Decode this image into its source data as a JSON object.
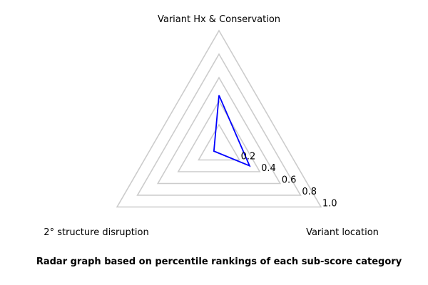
{
  "chart_data": {
    "type": "radar",
    "axes": [
      "Variant Hx & Conservation",
      "Variant location",
      "2° structure disruption"
    ],
    "series": [
      {
        "values": [
          0.45,
          0.3,
          0.05
        ],
        "color": "#0000ff"
      }
    ],
    "rlim": [
      0,
      1.0
    ],
    "ticks": [
      0.2,
      0.4,
      0.6,
      0.8,
      1.0
    ],
    "tick_labels": [
      "0.2",
      "0.4",
      "0.6",
      "0.8",
      "1.0"
    ],
    "grid_color": "#cccccc",
    "caption": "Radar graph based on percentile rankings of each sub-score category"
  }
}
